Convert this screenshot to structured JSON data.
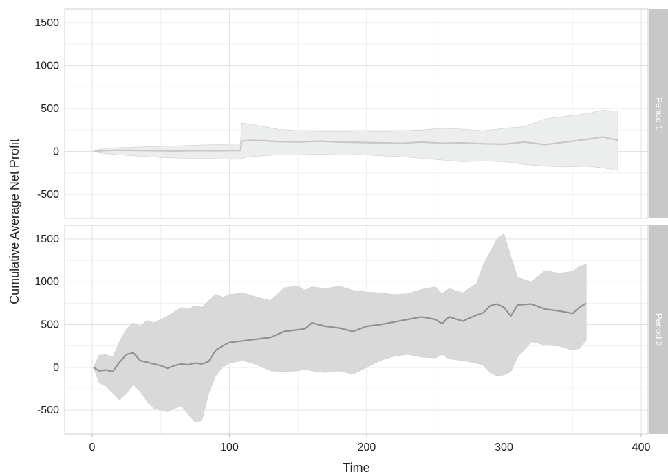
{
  "chart_data": {
    "type": "line",
    "xlabel": "Time",
    "ylabel": "Cumulative Average Net Profit",
    "xlim": [
      -20,
      405
    ],
    "ylim": [
      -780,
      1660
    ],
    "xticks": [
      0,
      100,
      200,
      300,
      400
    ],
    "yticks": [
      -500,
      0,
      500,
      1000,
      1500
    ],
    "grid": true,
    "panels": [
      {
        "strip": "Period 1",
        "line_color": "#c8c8c8",
        "band_color": "#eceded",
        "x": [
          1,
          5,
          10,
          20,
          30,
          40,
          50,
          60,
          70,
          80,
          90,
          100,
          108,
          109,
          115,
          125,
          135,
          150,
          165,
          180,
          195,
          210,
          225,
          240,
          255,
          270,
          285,
          300,
          315,
          330,
          345,
          360,
          372,
          383
        ],
        "mean": [
          0,
          5,
          10,
          15,
          12,
          10,
          8,
          5,
          8,
          10,
          8,
          10,
          10,
          120,
          130,
          125,
          115,
          110,
          120,
          110,
          105,
          100,
          95,
          110,
          95,
          100,
          90,
          85,
          110,
          80,
          110,
          140,
          170,
          130
        ],
        "upper": [
          0,
          25,
          35,
          45,
          50,
          55,
          60,
          65,
          70,
          75,
          80,
          85,
          90,
          330,
          320,
          290,
          260,
          240,
          235,
          230,
          240,
          230,
          240,
          250,
          270,
          260,
          240,
          270,
          290,
          380,
          410,
          440,
          480,
          470
        ],
        "lower": [
          0,
          -15,
          -25,
          -40,
          -50,
          -60,
          -70,
          -75,
          -80,
          -80,
          -85,
          -90,
          -90,
          -80,
          -60,
          -50,
          -40,
          -40,
          -30,
          -40,
          -35,
          -50,
          -60,
          -80,
          -100,
          -120,
          -110,
          -120,
          -150,
          -170,
          -180,
          -170,
          -190,
          -220
        ]
      },
      {
        "strip": "Period 2",
        "line_color": "#909090",
        "band_color": "#d9d9d9",
        "x": [
          1,
          5,
          10,
          15,
          20,
          25,
          30,
          35,
          40,
          45,
          50,
          55,
          60,
          65,
          70,
          75,
          80,
          85,
          90,
          95,
          100,
          110,
          120,
          130,
          140,
          150,
          155,
          160,
          170,
          180,
          190,
          200,
          210,
          220,
          230,
          240,
          250,
          255,
          260,
          270,
          280,
          285,
          290,
          295,
          300,
          305,
          310,
          320,
          330,
          340,
          350,
          355,
          360
        ],
        "mean": [
          0,
          -40,
          -30,
          -50,
          60,
          150,
          170,
          80,
          60,
          40,
          20,
          -10,
          20,
          40,
          30,
          50,
          40,
          70,
          200,
          250,
          290,
          310,
          330,
          350,
          420,
          440,
          450,
          520,
          480,
          460,
          420,
          480,
          500,
          530,
          560,
          590,
          560,
          510,
          590,
          540,
          610,
          640,
          720,
          740,
          700,
          600,
          730,
          740,
          680,
          660,
          630,
          700,
          750
        ],
        "upper": [
          0,
          140,
          150,
          120,
          300,
          450,
          520,
          480,
          550,
          520,
          560,
          600,
          650,
          700,
          680,
          720,
          700,
          780,
          850,
          820,
          850,
          870,
          820,
          780,
          930,
          950,
          900,
          940,
          920,
          950,
          900,
          880,
          870,
          850,
          860,
          910,
          940,
          860,
          920,
          870,
          980,
          1200,
          1350,
          1500,
          1560,
          1300,
          1050,
          1000,
          1130,
          1100,
          1120,
          1180,
          1200
        ],
        "lower": [
          0,
          -180,
          -220,
          -300,
          -380,
          -300,
          -200,
          -280,
          -400,
          -480,
          -500,
          -520,
          -480,
          -450,
          -550,
          -640,
          -620,
          -300,
          -100,
          0,
          50,
          80,
          30,
          -40,
          -50,
          -40,
          -20,
          -40,
          -60,
          -40,
          -80,
          0,
          80,
          130,
          150,
          120,
          110,
          150,
          100,
          80,
          50,
          20,
          -60,
          -100,
          -90,
          -50,
          120,
          300,
          260,
          250,
          200,
          220,
          320
        ]
      }
    ]
  }
}
